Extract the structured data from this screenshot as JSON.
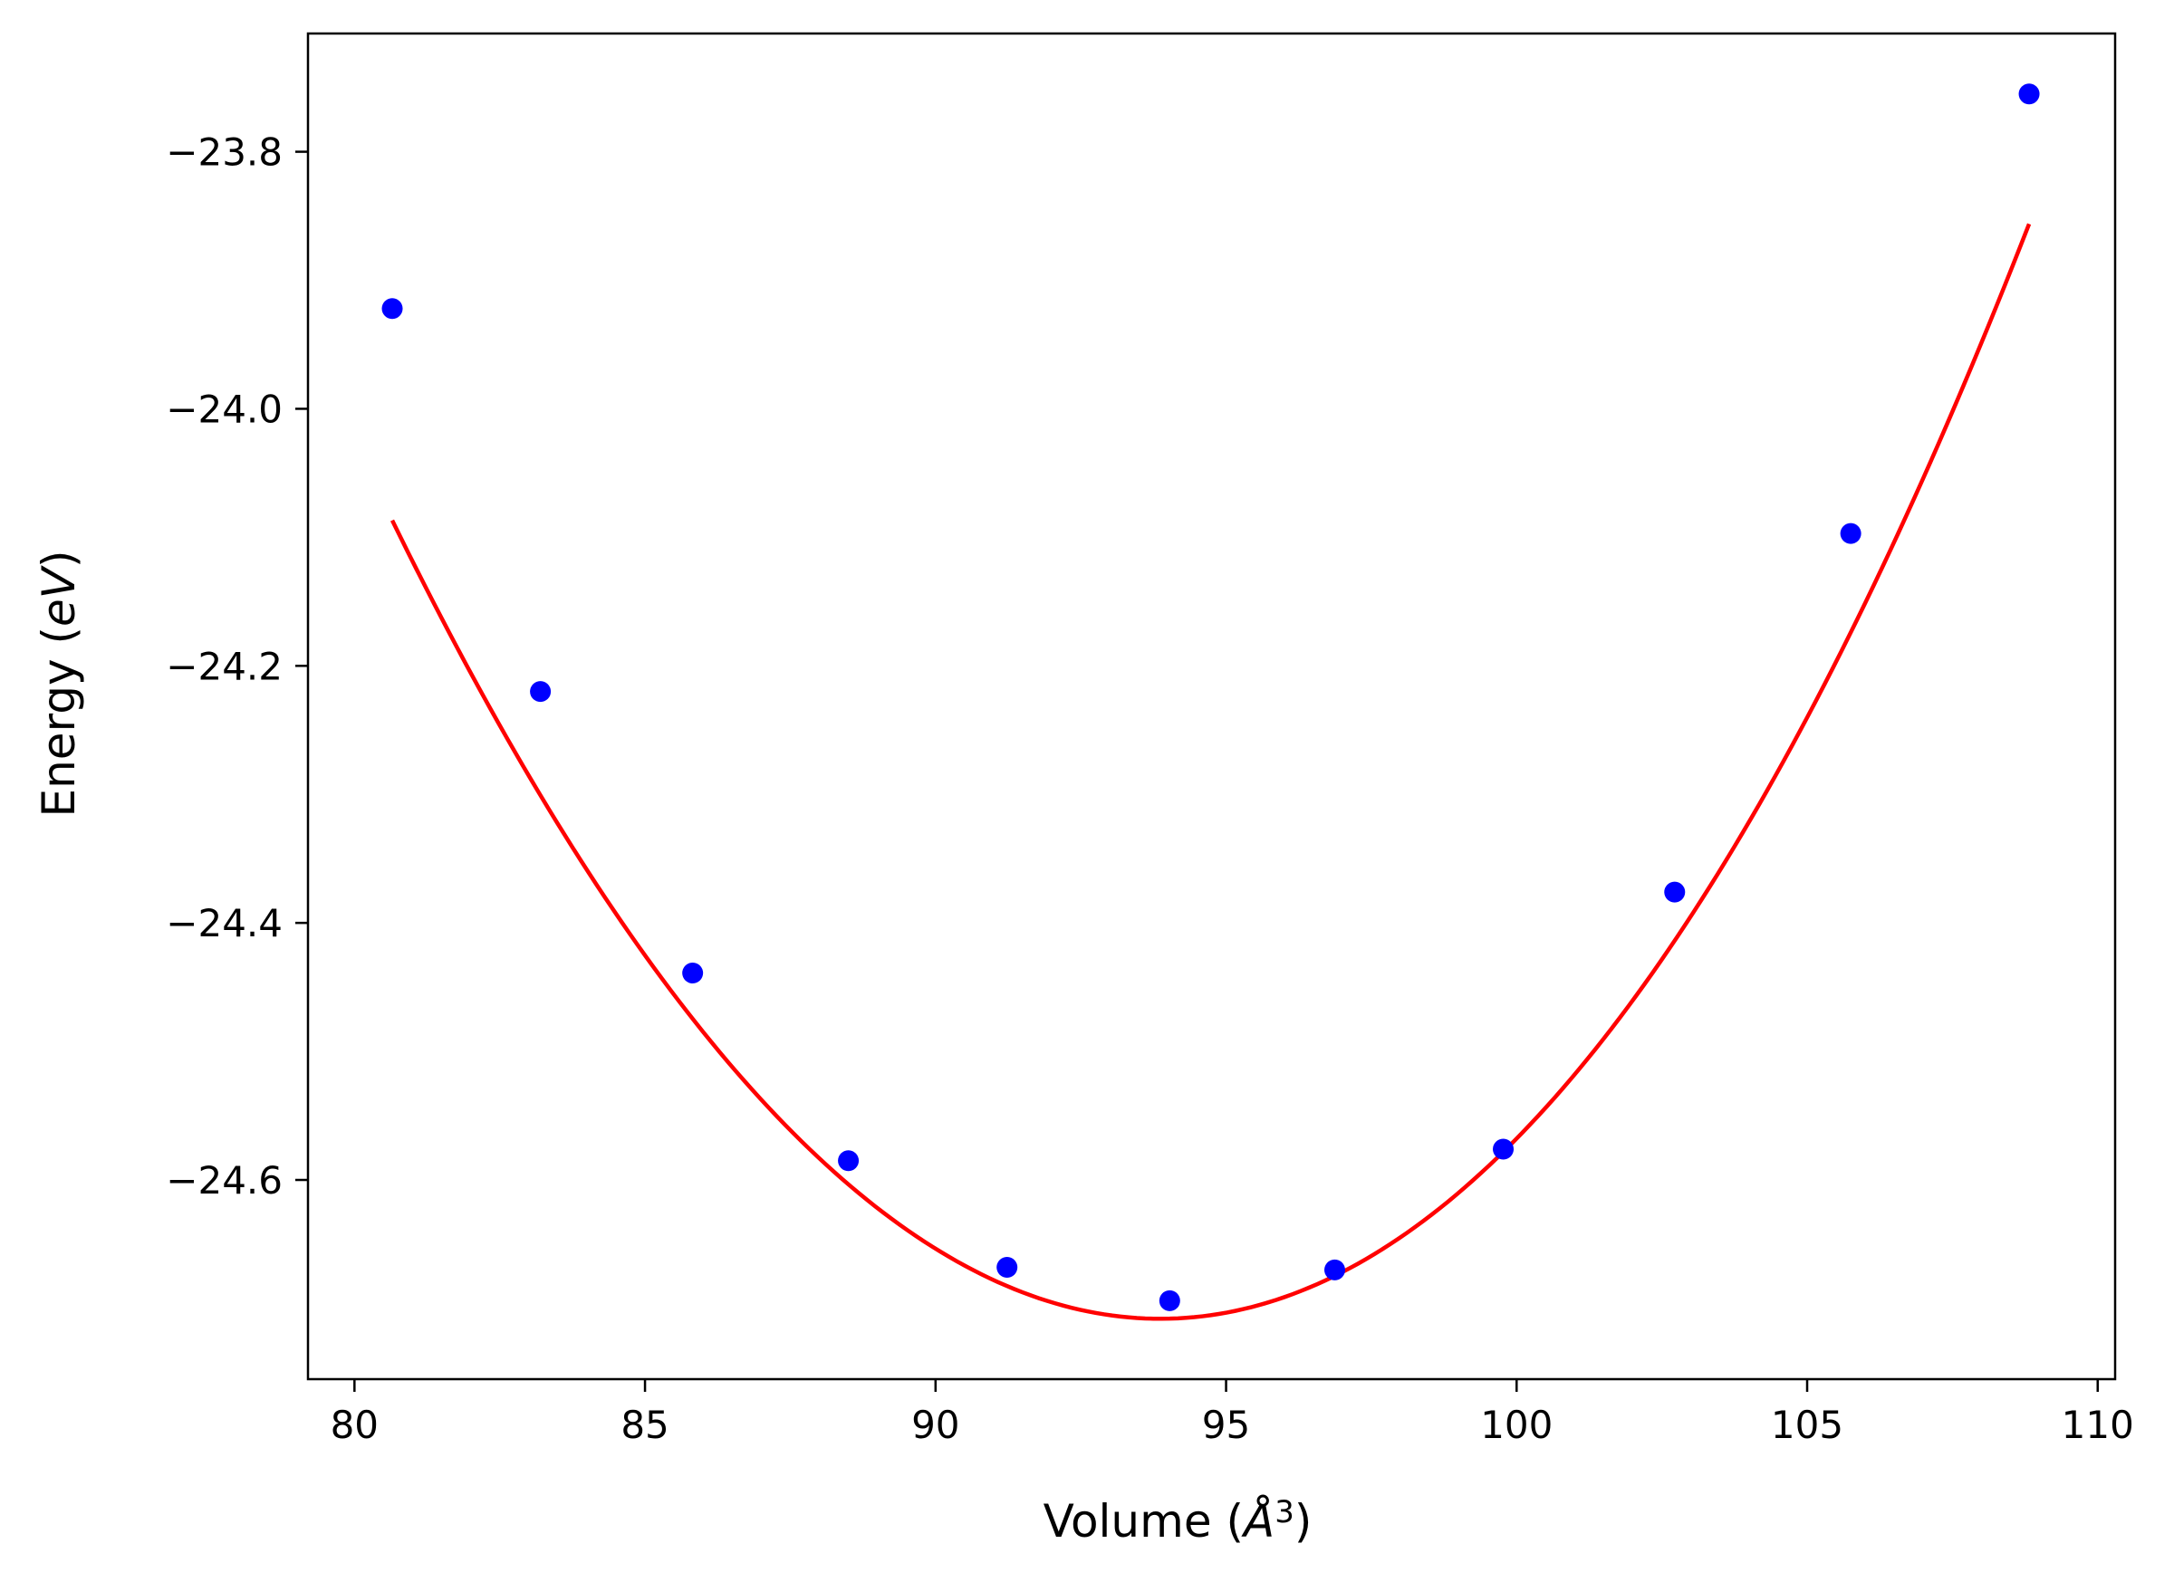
{
  "chart_data": {
    "type": "scatter",
    "xlabel": "Volume (Å³)",
    "ylabel": "Energy (eV)",
    "xlim": [
      79.2,
      110.3
    ],
    "ylim": [
      -24.755,
      -23.708
    ],
    "xticks": [
      80,
      85,
      90,
      95,
      100,
      105,
      110
    ],
    "yticks": [
      -24.6,
      -24.4,
      -24.2,
      -24.0,
      -23.8
    ],
    "ytick_labels": [
      "−24.6",
      "−24.4",
      "−24.2",
      "−24.0",
      "−23.8"
    ],
    "xtick_labels": [
      "80",
      "85",
      "90",
      "95",
      "100",
      "105",
      "110"
    ],
    "grid": false,
    "series": [
      {
        "kind": "points",
        "color": "#0000ff",
        "x": [
          80.65,
          83.2,
          85.82,
          88.5,
          91.23,
          94.03,
          96.87,
          99.77,
          102.72,
          105.75,
          108.82
        ],
        "y": [
          -23.922,
          -24.22,
          -24.439,
          -24.585,
          -24.668,
          -24.694,
          -24.67,
          -24.576,
          -24.376,
          -24.097,
          -23.755
        ]
      },
      {
        "kind": "fit",
        "color": "#ff0000",
        "x_range": [
          80.65,
          108.82
        ],
        "equation": {
          "x0": 93.87,
          "y0": -24.708,
          "a2": 0.003675,
          "a3": 9.12e-06
        }
      }
    ]
  }
}
